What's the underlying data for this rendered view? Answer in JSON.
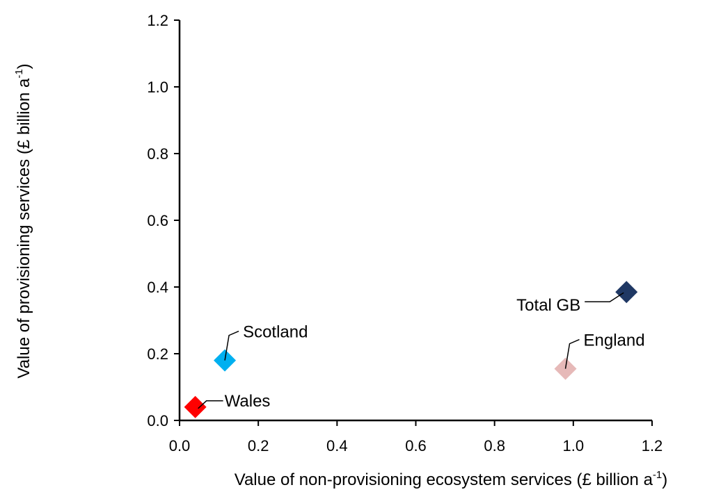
{
  "chart_data": {
    "type": "scatter",
    "xlabel_parts": [
      "Value of non-provisioning ecosystem services (£ billion a",
      "-1",
      ")"
    ],
    "ylabel_parts": [
      "Value of provisioning services (£ billion a",
      "-1",
      ")"
    ],
    "xlim": [
      0.0,
      1.2
    ],
    "ylim": [
      0.0,
      1.2
    ],
    "xticks": [
      "0.0",
      "0.2",
      "0.4",
      "0.6",
      "0.8",
      "1.0",
      "1.2"
    ],
    "yticks": [
      "0.0",
      "0.2",
      "0.4",
      "0.6",
      "0.8",
      "1.0",
      "1.2"
    ],
    "grid": false,
    "legend": "none",
    "points": [
      {
        "label": "Wales",
        "x": 0.04,
        "y": 0.04,
        "color": "#ff0000",
        "label_side": "right"
      },
      {
        "label": "Scotland",
        "x": 0.115,
        "y": 0.18,
        "color": "#00b0f0",
        "label_side": "upper-right"
      },
      {
        "label": "England",
        "x": 0.98,
        "y": 0.155,
        "color": "#e6b9b8",
        "label_side": "upper-right"
      },
      {
        "label": "Total GB",
        "x": 1.135,
        "y": 0.385,
        "color": "#1f3864",
        "label_side": "left"
      }
    ]
  }
}
